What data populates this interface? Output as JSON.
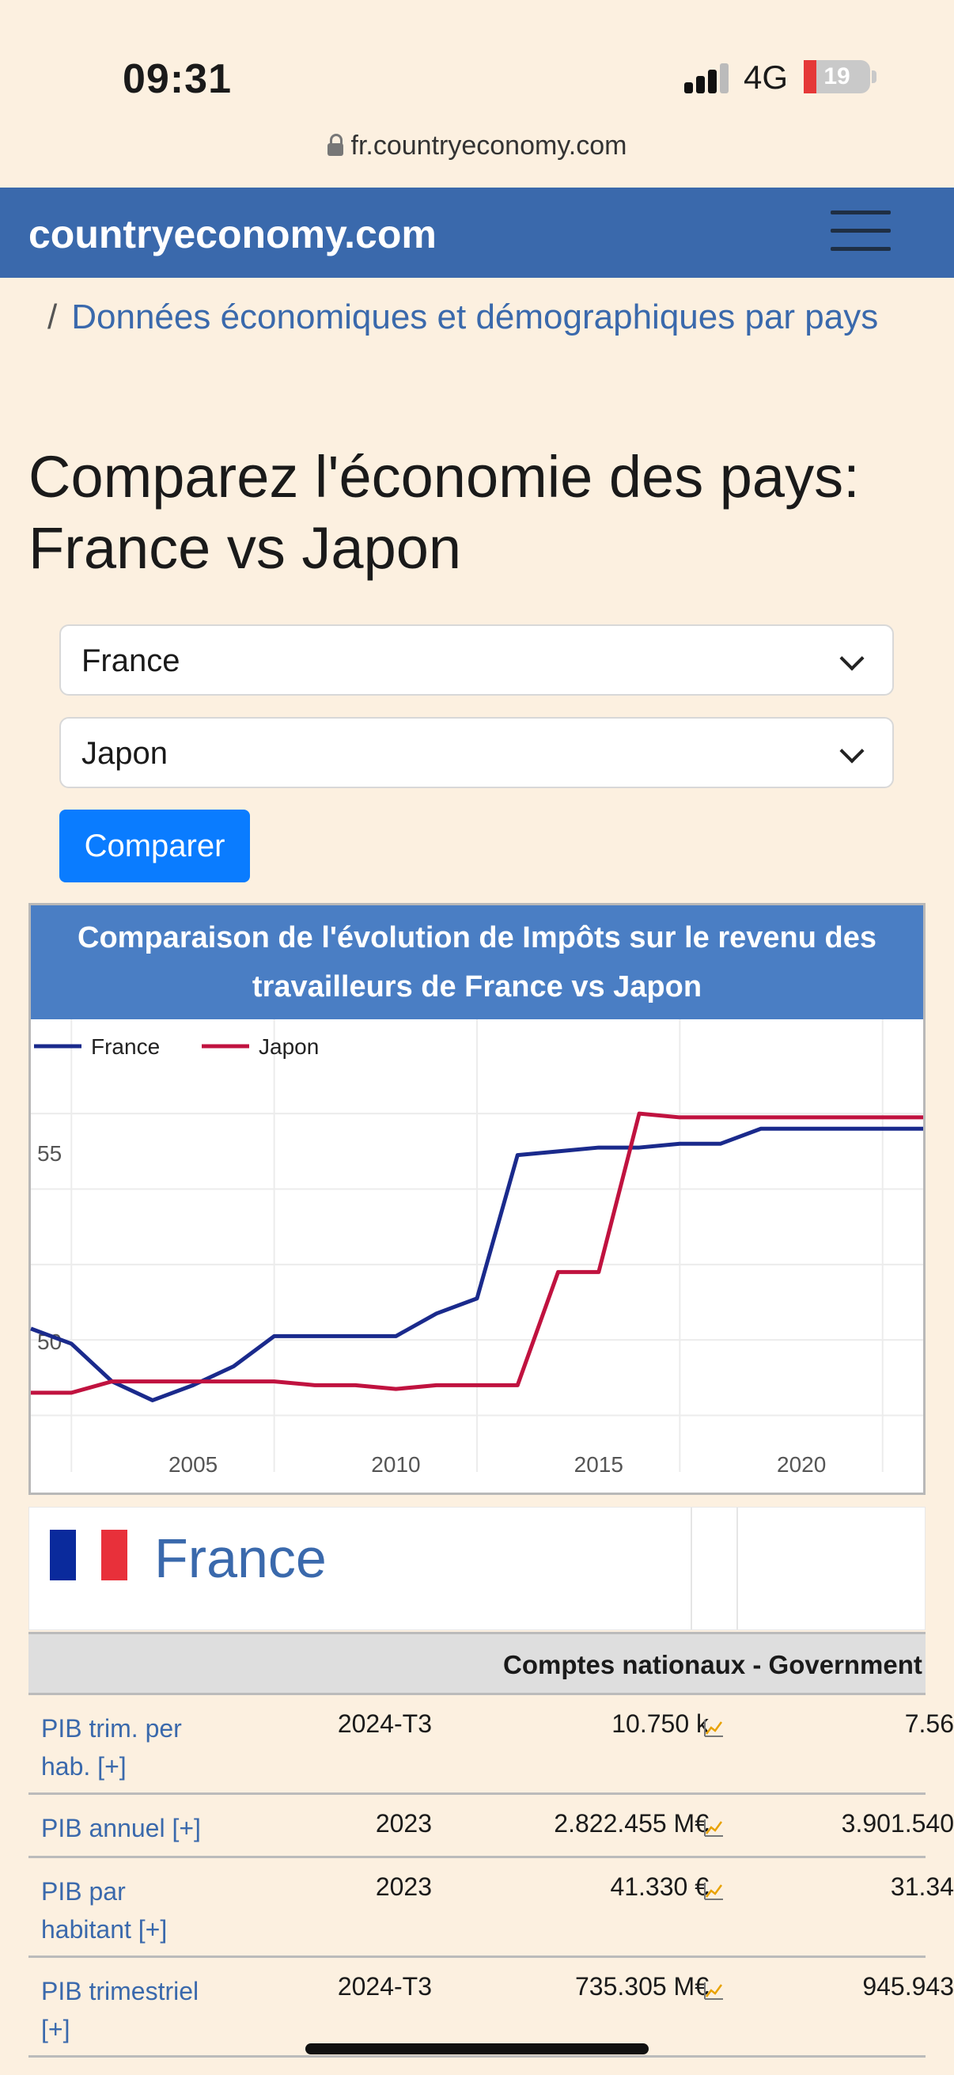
{
  "status": {
    "time": "09:31",
    "network": "4G",
    "battery": "19",
    "battery_level": 0.19
  },
  "browser": {
    "url": "fr.countryeconomy.com"
  },
  "nav": {
    "brand": "countryeconomy.com"
  },
  "breadcrumb": {
    "separator": "/",
    "link": "Données économiques et démographiques par pays"
  },
  "page": {
    "title": "Comparez l'économie des pays: France vs Japon"
  },
  "form": {
    "country1": "France",
    "country2": "Japon",
    "compare_label": "Comparer"
  },
  "chart_data": {
    "type": "line",
    "title": "Comparaison de l'évolution de Impôts sur le revenu des travailleurs de France vs Japon",
    "x": [
      2001,
      2002,
      2003,
      2004,
      2005,
      2006,
      2007,
      2008,
      2009,
      2010,
      2011,
      2012,
      2013,
      2014,
      2015,
      2016,
      2017,
      2018,
      2019,
      2020,
      2021,
      2022,
      2023
    ],
    "series": [
      {
        "name": "France",
        "color": "#1a2a8c",
        "values": [
          50.3,
          49.9,
          48.9,
          48.4,
          48.8,
          49.3,
          50.1,
          50.1,
          50.1,
          50.1,
          50.7,
          51.1,
          54.9,
          55.0,
          55.1,
          55.1,
          55.2,
          55.2,
          55.6,
          55.6,
          55.6,
          55.6,
          55.6
        ]
      },
      {
        "name": "Japon",
        "color": "#c0123f",
        "values": [
          48.6,
          48.6,
          48.9,
          48.9,
          48.9,
          48.9,
          48.9,
          48.8,
          48.8,
          48.7,
          48.8,
          48.8,
          48.8,
          51.8,
          51.8,
          56.0,
          55.9,
          55.9,
          55.9,
          55.9,
          55.9,
          55.9,
          55.9
        ]
      }
    ],
    "xticks": [
      "2005",
      "2010",
      "2015",
      "2020"
    ],
    "yticks": [
      "50",
      "55"
    ],
    "ylim": [
      46.5,
      58.5
    ],
    "xlim": [
      2001,
      2023
    ],
    "legend": "top-left",
    "grid": true
  },
  "country_section": {
    "name": "France",
    "flag_colors": [
      "#0a2a9c",
      "#ffffff",
      "#e8303a"
    ]
  },
  "table": {
    "header": "Comptes nationaux - Government",
    "rows": [
      {
        "label": "PIB trim. per hab. [+]",
        "date": "2024-T3",
        "value": "10.750 k",
        "value2": "7.56"
      },
      {
        "label": "PIB annuel [+]",
        "date": "2023",
        "value": "2.822.455 M€",
        "value2": "3.901.540"
      },
      {
        "label": "PIB par habitant [+]",
        "date": "2023",
        "value": "41.330 €",
        "value2": "31.34"
      },
      {
        "label": "PIB trimestriel [+]",
        "date": "2024-T3",
        "value": "735.305 M€",
        "value2": "945.943"
      }
    ]
  }
}
